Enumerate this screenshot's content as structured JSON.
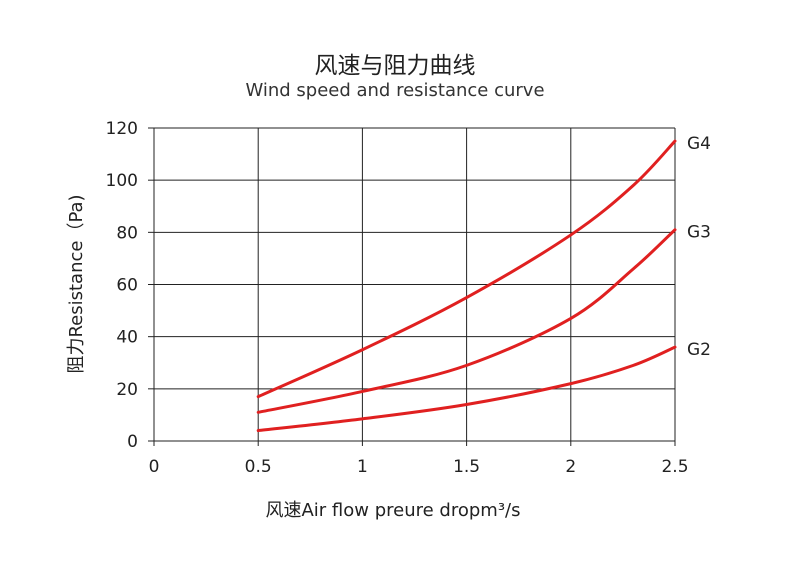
{
  "chart_data": {
    "type": "line",
    "title": "风速与阻力曲线",
    "subtitle": "Wind speed and resistance curve",
    "xlabel": "风速Air flow preure dropm³/s",
    "ylabel": "阻力Resistance（Pa)",
    "xlim": [
      0,
      2.5
    ],
    "ylim": [
      0,
      120
    ],
    "xticks": [
      "0",
      "0.5",
      "1",
      "1.5",
      "2",
      "2.5"
    ],
    "yticks": [
      "0",
      "20",
      "40",
      "60",
      "80",
      "100",
      "120"
    ],
    "grid": true,
    "line_color": "#e02020",
    "series": [
      {
        "name": "G4",
        "x": [
          0.5,
          1.0,
          1.5,
          2.0,
          2.3,
          2.5
        ],
        "y": [
          17,
          35,
          55,
          79,
          98,
          115
        ]
      },
      {
        "name": "G3",
        "x": [
          0.5,
          1.0,
          1.5,
          2.0,
          2.3,
          2.5
        ],
        "y": [
          11,
          19,
          29,
          47,
          66,
          81
        ]
      },
      {
        "name": "G2",
        "x": [
          0.5,
          1.0,
          1.5,
          2.0,
          2.3,
          2.5
        ],
        "y": [
          4,
          8.5,
          14,
          22,
          29,
          36
        ]
      }
    ]
  }
}
